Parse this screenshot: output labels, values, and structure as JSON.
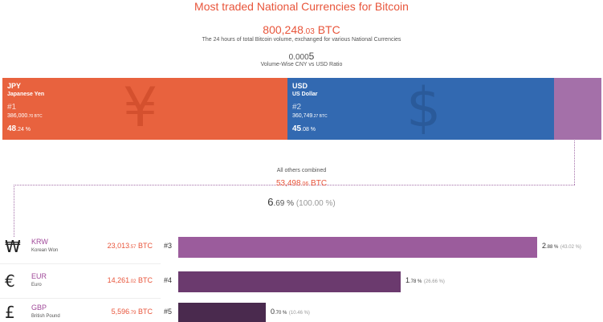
{
  "header": {
    "title": "Most traded National Currencies for Bitcoin",
    "total_int": "800,248",
    "total_dec": ".03",
    "total_unit": " BTC",
    "total_desc": "The 24 hours of total Bitcoin volume, exchanged for various National Currencies",
    "ratio_small": "0.000",
    "ratio_big": "5",
    "ratio_desc": "Volume-Wise CNY vs USD Ratio"
  },
  "top_segments": [
    {
      "code": "JPY",
      "name": "Japanese Yen",
      "symbol": "¥",
      "rank": "#1",
      "btc_int": "386,000",
      "btc_dec": ".70",
      "btc_unit": " BTC",
      "pct_int": "48",
      "pct_dec": ".24",
      "pct_unit": " %"
    },
    {
      "code": "USD",
      "name": "US Dollar",
      "symbol": "$",
      "rank": "#2",
      "btc_int": "360,749",
      "btc_dec": ".27",
      "btc_unit": " BTC",
      "pct_int": "45",
      "pct_dec": ".08",
      "pct_unit": " %"
    }
  ],
  "others": {
    "label": "All others combined",
    "btc_int": "53,498",
    "btc_dec": ".06",
    "btc_unit": " BTC",
    "pct_int": "6",
    "pct_dec": ".69",
    "pct_unit": " %",
    "share_of_others": "(100.00 %)"
  },
  "colors": {
    "jpy": "#e8623e",
    "usd": "#3269b1",
    "others": "#a470a9",
    "krw_bar": "#9b5c9c",
    "eur_bar": "#6b3a6e",
    "gbp_bar": "#4a2a4e",
    "accent_text": "#e8553b"
  },
  "rows": [
    {
      "symbol": "₩",
      "code": "KRW",
      "name": "Korean Won",
      "btc_int": "23,013",
      "btc_dec": ".57",
      "btc_unit": " BTC",
      "rank": "#3",
      "pct_int": "2",
      "pct_dec": ".88",
      "pct_unit": " %",
      "share": "(43.02 %)"
    },
    {
      "symbol": "€",
      "code": "EUR",
      "name": "Euro",
      "btc_int": "14,261",
      "btc_dec": ".02",
      "btc_unit": " BTC",
      "rank": "#4",
      "pct_int": "1",
      "pct_dec": ".78",
      "pct_unit": " %",
      "share": "(26.66 %)"
    },
    {
      "symbol": "£",
      "code": "GBP",
      "name": "British Pound",
      "btc_int": "5,596",
      "btc_dec": ".79",
      "btc_unit": " BTC",
      "rank": "#5",
      "pct_int": "0",
      "pct_dec": ".70",
      "pct_unit": " %",
      "share": "(10.46 %)"
    }
  ],
  "chart_data": {
    "type": "bar",
    "title": "Most traded National Currencies for Bitcoin",
    "categories": [
      "JPY",
      "USD",
      "KRW",
      "EUR",
      "GBP"
    ],
    "values": [
      386000.7,
      360749.27,
      23013.57,
      14261.02,
      5596.79
    ],
    "percent_of_total": [
      48.24,
      45.08,
      2.88,
      1.78,
      0.7
    ],
    "others_total": 53498.06,
    "others_percent": 6.69,
    "share_of_others": [
      43.02,
      26.66,
      10.46
    ],
    "total": 800248.03,
    "unit": "BTC"
  }
}
